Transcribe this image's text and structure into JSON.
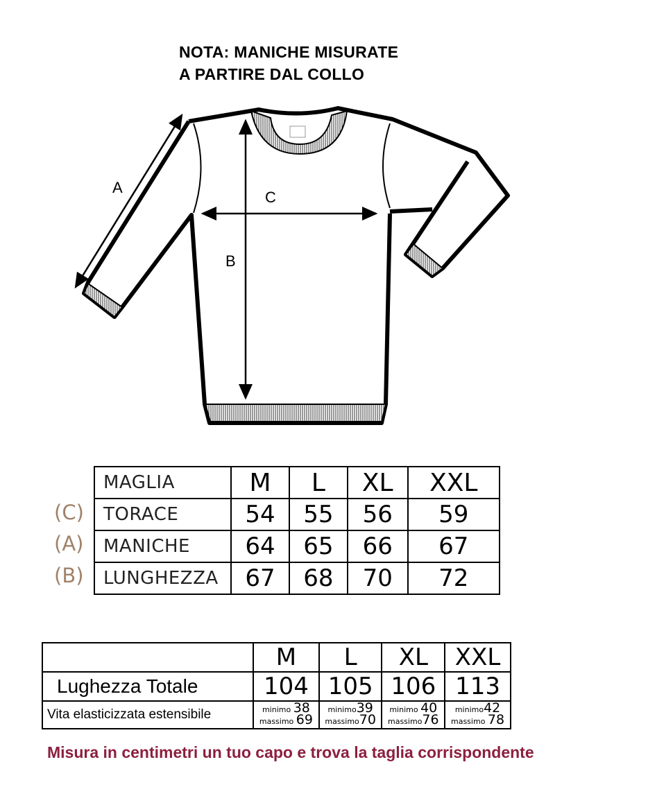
{
  "note": {
    "line1": "NOTA: MANICHE MISURATE",
    "line2": "A PARTIRE DAL COLLO"
  },
  "diagram": {
    "label_a": "A",
    "label_b": "B",
    "label_c": "C"
  },
  "size_table": {
    "header_label": "MAGLIA",
    "sizes": [
      "M",
      "L",
      "XL",
      "XXL"
    ],
    "rows": [
      {
        "key": "(C)",
        "label": "TORACE",
        "values": [
          "54",
          "55",
          "56",
          "59"
        ]
      },
      {
        "key": "(A)",
        "label": "MANICHE",
        "values": [
          "64",
          "65",
          "66",
          "67"
        ]
      },
      {
        "key": "(B)",
        "label": "LUNGHEZZA",
        "values": [
          "67",
          "68",
          "70",
          "72"
        ]
      }
    ]
  },
  "total_table": {
    "sizes": [
      "M",
      "L",
      "XL",
      "XXL"
    ],
    "length_label": "Lughezza Totale",
    "length_values": [
      "104",
      "105",
      "106",
      "113"
    ],
    "waist_label": "Vita elasticizzata estensibile",
    "min_label": "minimo",
    "max_label": "massimo",
    "waist_min": [
      "38",
      "39",
      "40",
      "42"
    ],
    "waist_max": [
      "69",
      "70",
      "76",
      "78"
    ]
  },
  "footer": "Misura in centimetri un tuo capo e trova la taglia corrispondente",
  "colors": {
    "footer": "#8c1f3f",
    "key_letters": "#a0826a"
  }
}
